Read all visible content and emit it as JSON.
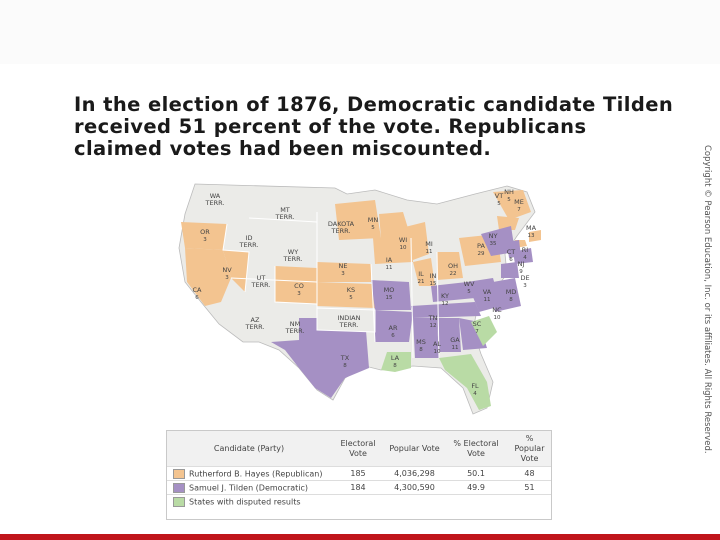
{
  "headline": "In the election of 1876, Democratic candidate Tilden received 51 percent of the vote. Republicans claimed votes had been miscounted.",
  "copyright": "Copyright © Pearson Education, Inc. or its affiliates. All Rights Reserved.",
  "colors": {
    "republican": "#f3c490",
    "democratic": "#a590c4",
    "disputed": "#b9dba5",
    "territory": "#ebebe8",
    "accent_bar": "#c0151b"
  },
  "map": {
    "labels": [
      {
        "name": "WA TERR.",
        "votes": ""
      },
      {
        "name": "OR",
        "votes": "3"
      },
      {
        "name": "CA",
        "votes": "6"
      },
      {
        "name": "NV",
        "votes": "3"
      },
      {
        "name": "ID TERR.",
        "votes": ""
      },
      {
        "name": "MT TERR.",
        "votes": ""
      },
      {
        "name": "WY TERR.",
        "votes": ""
      },
      {
        "name": "UT TERR.",
        "votes": ""
      },
      {
        "name": "AZ TERR.",
        "votes": ""
      },
      {
        "name": "NM TERR.",
        "votes": ""
      },
      {
        "name": "CO",
        "votes": "3"
      },
      {
        "name": "DAKOTA TERR.",
        "votes": ""
      },
      {
        "name": "NE",
        "votes": "3"
      },
      {
        "name": "KS",
        "votes": "5"
      },
      {
        "name": "INDIAN TERR.",
        "votes": ""
      },
      {
        "name": "TX",
        "votes": "8"
      },
      {
        "name": "MN",
        "votes": "5"
      },
      {
        "name": "IA",
        "votes": "11"
      },
      {
        "name": "MO",
        "votes": "15"
      },
      {
        "name": "AR",
        "votes": "6"
      },
      {
        "name": "LA",
        "votes": "8"
      },
      {
        "name": "WI",
        "votes": "10"
      },
      {
        "name": "IL",
        "votes": "21"
      },
      {
        "name": "MI",
        "votes": "11"
      },
      {
        "name": "IN",
        "votes": "15"
      },
      {
        "name": "OH",
        "votes": "22"
      },
      {
        "name": "KY",
        "votes": "12"
      },
      {
        "name": "TN",
        "votes": "12"
      },
      {
        "name": "MS",
        "votes": "8"
      },
      {
        "name": "AL",
        "votes": "10"
      },
      {
        "name": "GA",
        "votes": "11"
      },
      {
        "name": "FL",
        "votes": "4"
      },
      {
        "name": "SC",
        "votes": "7"
      },
      {
        "name": "NC",
        "votes": "10"
      },
      {
        "name": "VA",
        "votes": "11"
      },
      {
        "name": "WV",
        "votes": "5"
      },
      {
        "name": "PA",
        "votes": "29"
      },
      {
        "name": "NY",
        "votes": "35"
      },
      {
        "name": "VT",
        "votes": "5"
      },
      {
        "name": "NH",
        "votes": "5"
      },
      {
        "name": "ME",
        "votes": "7"
      },
      {
        "name": "MA",
        "votes": "13"
      },
      {
        "name": "RI",
        "votes": "4"
      },
      {
        "name": "CT",
        "votes": "6"
      },
      {
        "name": "NJ",
        "votes": "9"
      },
      {
        "name": "DE",
        "votes": "3"
      },
      {
        "name": "MD",
        "votes": "8"
      }
    ]
  },
  "legend": {
    "headers": [
      "Candidate (Party)",
      "Electoral Vote",
      "Popular Vote",
      "% Electoral Vote",
      "% Popular Vote"
    ],
    "rows": [
      {
        "swatch": "republican",
        "candidate": "Rutherford B. Hayes (Republican)",
        "electoral": "185",
        "popular": "4,036,298",
        "pct_electoral": "50.1",
        "pct_popular": "48"
      },
      {
        "swatch": "democratic",
        "candidate": "Samuel J. Tilden (Democratic)",
        "electoral": "184",
        "popular": "4,300,590",
        "pct_electoral": "49.9",
        "pct_popular": "51"
      },
      {
        "swatch": "disputed",
        "candidate": "States with disputed results",
        "electoral": "",
        "popular": "",
        "pct_electoral": "",
        "pct_popular": ""
      }
    ]
  }
}
